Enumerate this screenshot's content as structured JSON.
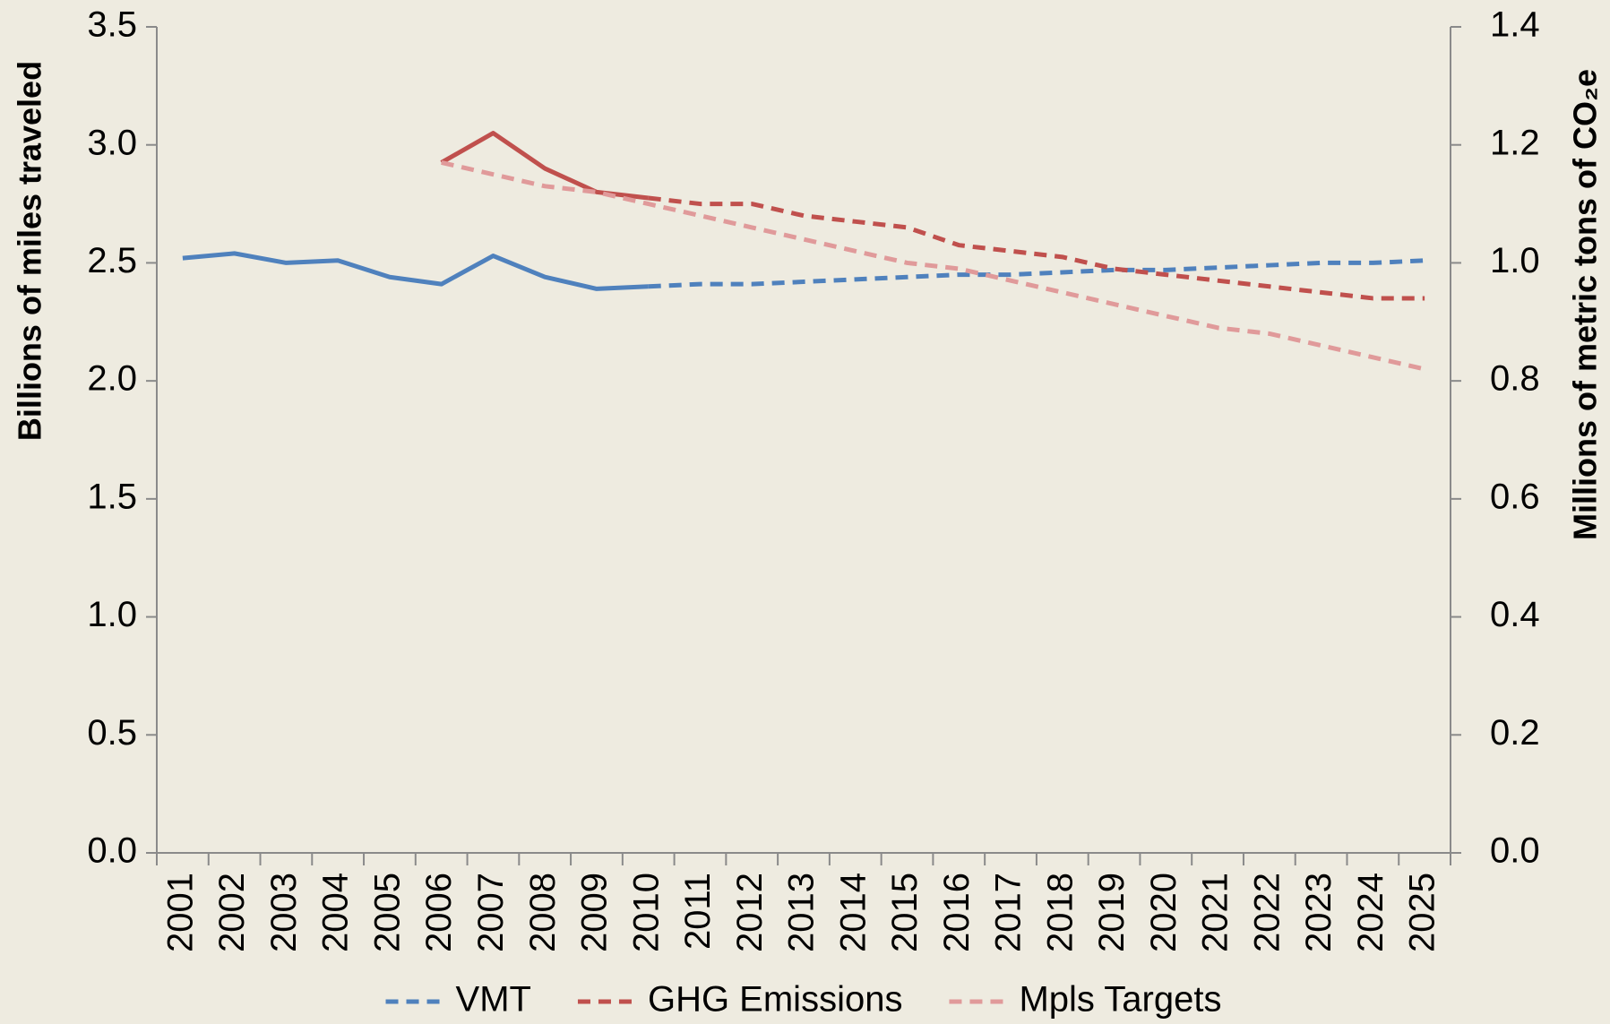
{
  "chart_data": {
    "type": "line",
    "categories": [
      "2001",
      "2002",
      "2003",
      "2004",
      "2005",
      "2006",
      "2007",
      "2008",
      "2009",
      "2010",
      "2011",
      "2012",
      "2013",
      "2014",
      "2015",
      "2016",
      "2017",
      "2018",
      "2019",
      "2020",
      "2021",
      "2022",
      "2023",
      "2024",
      "2025"
    ],
    "y_label": "Billions of miles traveled",
    "y2_label": "Millions of metric tons of CO₂e",
    "ylim": [
      0,
      3.5
    ],
    "yticks": [
      {
        "value": 0,
        "label": "0.0"
      },
      0.5,
      {
        "value": 1,
        "label": "1.0"
      },
      1.5,
      {
        "value": 2,
        "label": "2.0"
      },
      2.5,
      {
        "value": 3,
        "label": "3.0"
      },
      3.5
    ],
    "y2lim": [
      0,
      1.4
    ],
    "y2ticks": [
      {
        "value": 0,
        "label": "0.0"
      },
      0.2,
      0.4,
      0.6,
      0.8,
      {
        "value": 1,
        "label": "1.0"
      },
      1.2,
      1.4
    ],
    "legend": "bottom",
    "series": [
      {
        "name": "VMT",
        "color": "#4f81bd",
        "axis": "y",
        "solid_through": "2010",
        "values": [
          2.52,
          2.54,
          2.5,
          2.51,
          2.44,
          2.41,
          2.53,
          2.44,
          2.39,
          2.4,
          2.41,
          2.41,
          2.42,
          2.43,
          2.44,
          2.45,
          2.45,
          2.46,
          2.47,
          2.47,
          2.48,
          2.49,
          2.5,
          2.5,
          2.51
        ]
      },
      {
        "name": "GHG Emissions",
        "color": "#c0504d",
        "axis": "y2",
        "solid_through": "2010",
        "values": [
          null,
          null,
          null,
          null,
          null,
          1.17,
          1.22,
          1.16,
          1.12,
          1.11,
          1.1,
          1.1,
          1.08,
          1.07,
          1.06,
          1.03,
          1.02,
          1.01,
          0.99,
          0.98,
          0.97,
          0.96,
          0.95,
          0.94,
          0.94
        ]
      },
      {
        "name": "Mpls Targets",
        "color": "#e09a9a",
        "axis": "y2",
        "values": [
          null,
          null,
          null,
          null,
          null,
          1.17,
          1.15,
          1.13,
          1.12,
          1.1,
          1.08,
          1.06,
          1.04,
          1.02,
          1.0,
          0.99,
          0.97,
          0.95,
          0.93,
          0.91,
          0.89,
          0.88,
          0.86,
          0.84,
          0.82
        ]
      }
    ]
  }
}
